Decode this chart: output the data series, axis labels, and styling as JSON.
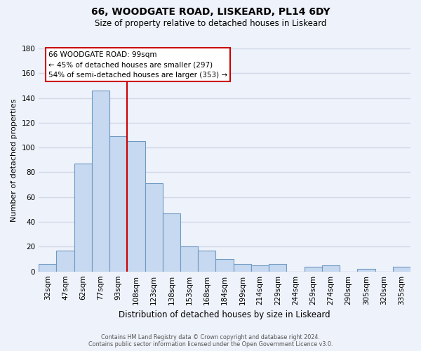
{
  "title": "66, WOODGATE ROAD, LISKEARD, PL14 6DY",
  "subtitle": "Size of property relative to detached houses in Liskeard",
  "xlabel": "Distribution of detached houses by size in Liskeard",
  "ylabel": "Number of detached properties",
  "categories": [
    "32sqm",
    "47sqm",
    "62sqm",
    "77sqm",
    "93sqm",
    "108sqm",
    "123sqm",
    "138sqm",
    "153sqm",
    "168sqm",
    "184sqm",
    "199sqm",
    "214sqm",
    "229sqm",
    "244sqm",
    "259sqm",
    "274sqm",
    "290sqm",
    "305sqm",
    "320sqm",
    "335sqm"
  ],
  "values": [
    6,
    17,
    87,
    146,
    109,
    105,
    71,
    47,
    20,
    17,
    10,
    6,
    5,
    6,
    0,
    4,
    5,
    0,
    2,
    0,
    4
  ],
  "bar_color": "#c6d9f0",
  "bar_edge_color": "#7099c2",
  "ylim": [
    0,
    180
  ],
  "yticks": [
    0,
    20,
    40,
    60,
    80,
    100,
    120,
    140,
    160,
    180
  ],
  "property_line_x": 4.5,
  "property_line_color": "#cc0000",
  "annotation_title": "66 WOODGATE ROAD: 99sqm",
  "annotation_line1": "← 45% of detached houses are smaller (297)",
  "annotation_line2": "54% of semi-detached houses are larger (353) →",
  "annotation_box_color": "#ffffff",
  "annotation_box_edge": "#cc0000",
  "footer_line1": "Contains HM Land Registry data © Crown copyright and database right 2024.",
  "footer_line2": "Contains public sector information licensed under the Open Government Licence v3.0.",
  "background_color": "#eef2fa",
  "grid_color": "#d0d8e8",
  "title_fontsize": 10,
  "subtitle_fontsize": 8.5,
  "ylabel_fontsize": 8,
  "xlabel_fontsize": 8.5,
  "tick_fontsize": 7.5,
  "footer_fontsize": 5.8
}
